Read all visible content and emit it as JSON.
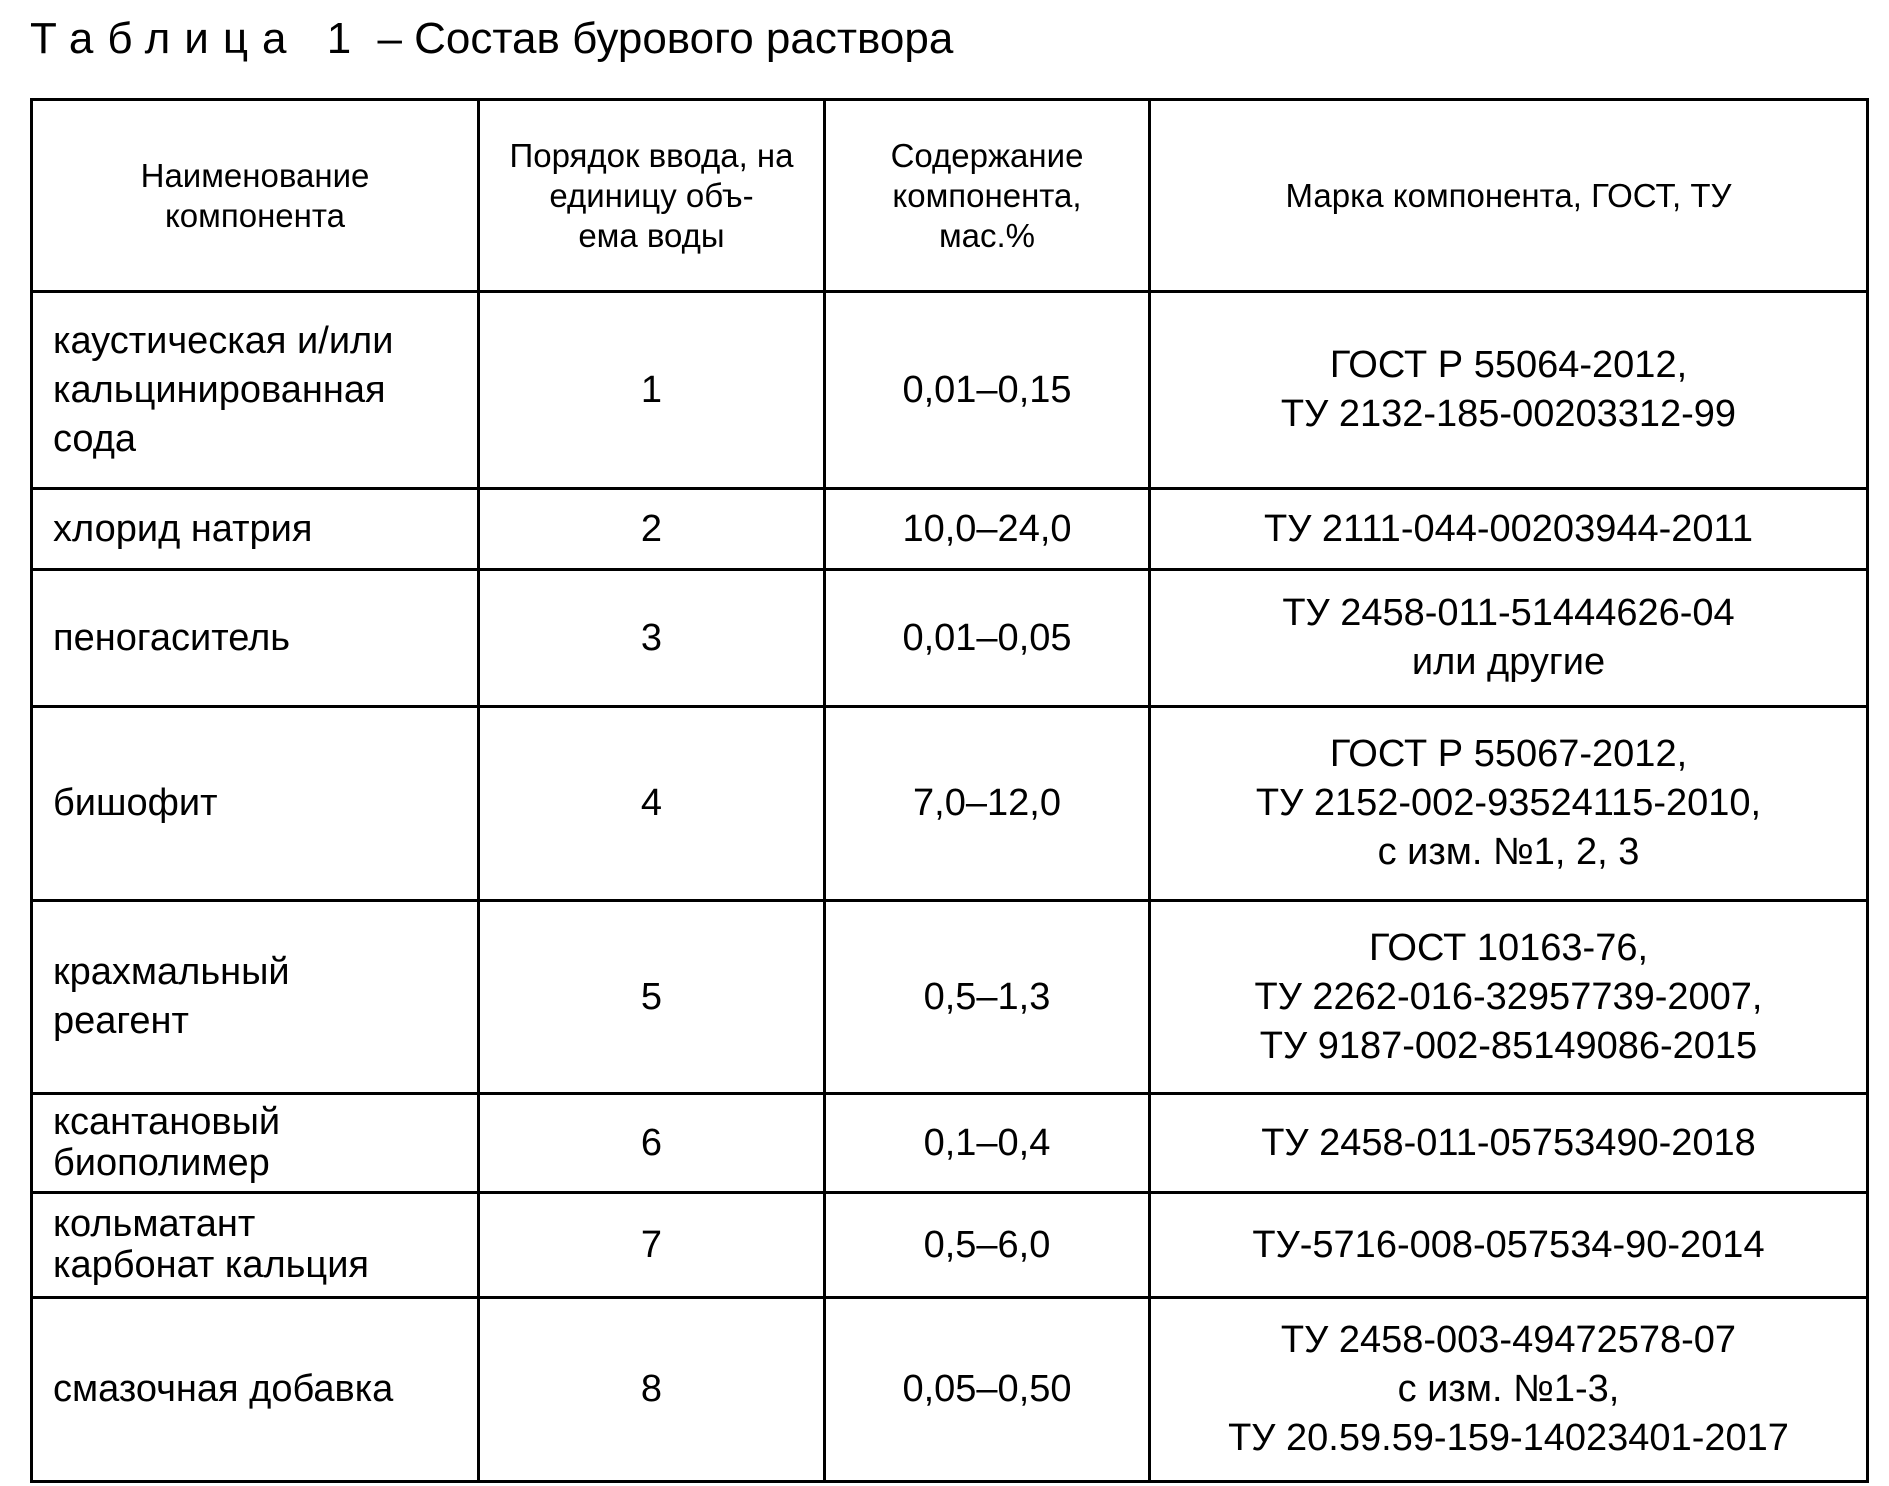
{
  "title": {
    "label": "Таблица 1",
    "caption": "– Состав бурового раствора"
  },
  "table": {
    "headers": [
      "Наименование компонента",
      "Порядок ввода, на единицу объ-\nема воды",
      "Содержание компонента,\nмас.%",
      "Марка компонента, ГОСТ, ТУ"
    ],
    "rows": [
      {
        "name": "каустическая и/или\nкальцинированная\nсода",
        "order": "1",
        "content": "0,01–0,15",
        "grade": "ГОСТ Р 55064-2012,\nТУ 2132-185-00203312-99"
      },
      {
        "name": "хлорид натрия",
        "order": "2",
        "content": "10,0–24,0",
        "grade": "ТУ 2111-044-00203944-2011"
      },
      {
        "name": "пеногаситель",
        "order": "3",
        "content": "0,01–0,05",
        "grade": "ТУ 2458-011-51444626-04\nили другие"
      },
      {
        "name": "бишофит",
        "order": "4",
        "content": "7,0–12,0",
        "grade": "ГОСТ Р 55067-2012,\nТУ 2152-002-93524115-2010,\nс изм. №1, 2, 3"
      },
      {
        "name": "крахмальный\nреагент",
        "order": "5",
        "content": "0,5–1,3",
        "grade": "ГОСТ 10163-76,\nТУ 2262-016-32957739-2007,\nТУ 9187-002-85149086-2015"
      },
      {
        "name": "ксантановый\nбиополимер",
        "order": "6",
        "content": "0,1–0,4",
        "grade": "ТУ 2458-011-05753490-2018"
      },
      {
        "name": "кольматант\nкарбонат кальция",
        "order": "7",
        "content": "0,5–6,0",
        "grade": "ТУ-5716-008-057534-90-2014"
      },
      {
        "name": "смазочная добавка",
        "order": "8",
        "content": "0,05–0,50",
        "grade": "ТУ 2458-003-49472578-07\nс изм. №1-3,\nТУ 20.59.59-159-14023401-2017"
      }
    ]
  }
}
